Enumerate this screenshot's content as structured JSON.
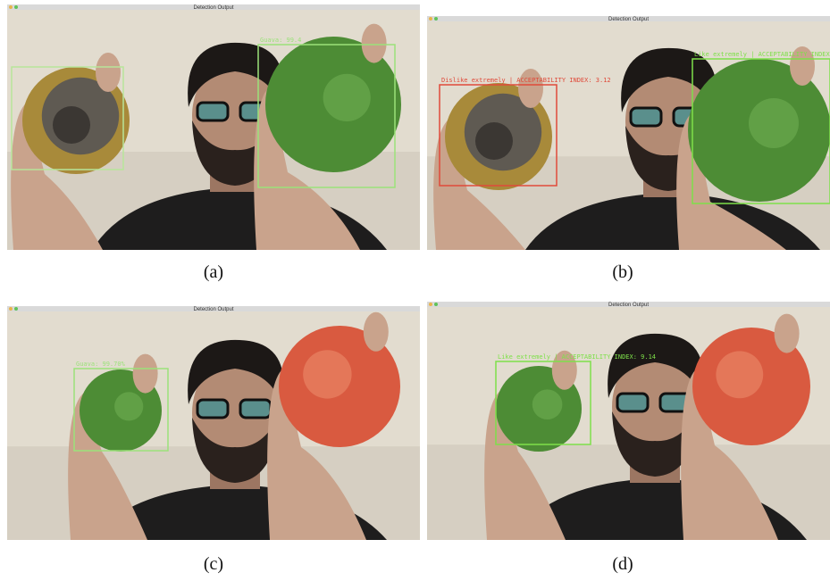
{
  "panels": [
    {
      "window_title": "Detection Output",
      "labels": [
        "Guava: 99.4"
      ],
      "caption": "(a)"
    },
    {
      "window_title": "Detection Output",
      "labels": [
        "Dislike extremely | ACCEPTABILITY INDEX: 3.12",
        "Like extremely | ACCEPTABILITY INDEX"
      ],
      "caption": "(b)"
    },
    {
      "window_title": "Detection Output",
      "labels": [
        "Guava: 99.70%"
      ],
      "caption": "(c)"
    },
    {
      "window_title": "Detection Output",
      "labels": [
        "Like extremely | ACCEPTABILITY INDEX: 9.14"
      ],
      "caption": "(d)"
    }
  ]
}
